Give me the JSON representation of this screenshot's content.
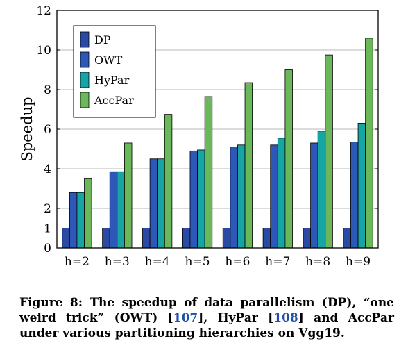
{
  "chart_data": {
    "type": "bar",
    "categories": [
      "h=2",
      "h=3",
      "h=4",
      "h=5",
      "h=6",
      "h=7",
      "h=8",
      "h=9"
    ],
    "series": [
      {
        "name": "DP",
        "color": "#2a4aa3",
        "values": [
          1,
          1,
          1,
          1,
          1,
          1,
          1,
          1
        ]
      },
      {
        "name": "OWT",
        "color": "#2e58b8",
        "values": [
          2.8,
          3.85,
          4.5,
          4.9,
          5.1,
          5.2,
          5.3,
          5.35
        ]
      },
      {
        "name": "HyPar",
        "color": "#17a5a3",
        "values": [
          2.8,
          3.85,
          4.5,
          4.95,
          5.2,
          5.55,
          5.9,
          6.3
        ]
      },
      {
        "name": "AccPar",
        "color": "#6ab85a",
        "values": [
          3.5,
          5.3,
          6.75,
          7.65,
          8.35,
          9.0,
          9.75,
          10.6
        ]
      }
    ],
    "ylabel": "Speedup",
    "xlabel": "",
    "title": "",
    "yticks": [
      0,
      1,
      2,
      4,
      6,
      8,
      10,
      12
    ],
    "ylim": [
      0,
      12
    ],
    "grid": "horizontal",
    "legend_position": "top-left"
  },
  "caption": {
    "prefix": "Figure 8: The speedup of data parallelism (DP), “one weird trick” (OWT) [",
    "ref1": "107",
    "middle": "], HyPar [",
    "ref2": "108",
    "suffix": "] and AccPar under various partitioning hierarchies on Vgg19."
  }
}
